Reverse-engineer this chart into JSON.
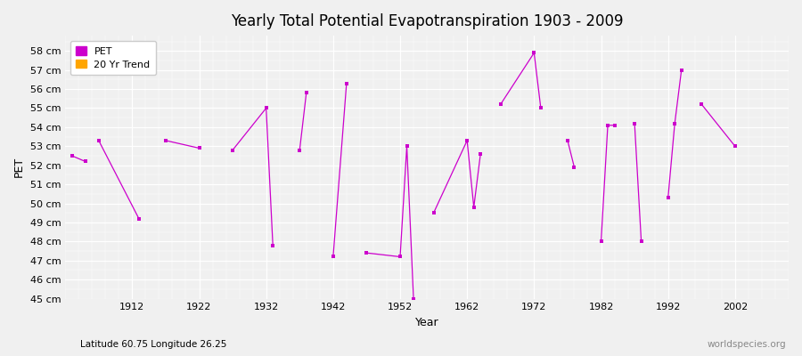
{
  "title": "Yearly Total Potential Evapotranspiration 1903 - 2009",
  "xlabel": "Year",
  "ylabel": "PET",
  "bottom_left_label": "Latitude 60.75 Longitude 26.25",
  "bottom_right_label": "worldspecies.org",
  "background_color": "#f0f0f0",
  "plot_bg_color": "#f0f0f0",
  "line_color": "#cc00cc",
  "trend_color": "#ffa500",
  "ylim_min": 45,
  "ylim_max": 58.8,
  "xlim_min": 1902,
  "xlim_max": 2010,
  "ytick_values": [
    45,
    46,
    47,
    48,
    49,
    50,
    51,
    52,
    53,
    54,
    55,
    56,
    57,
    58
  ],
  "ytick_labels": [
    "45 cm",
    "46 cm",
    "47 cm",
    "48 cm",
    "49 cm",
    "50 cm",
    "51 cm",
    "52 cm",
    "53 cm",
    "54 cm",
    "55 cm",
    "56 cm",
    "57 cm",
    "58 cm"
  ],
  "xtick_values": [
    1912,
    1922,
    1932,
    1942,
    1952,
    1962,
    1972,
    1982,
    1992,
    2002
  ],
  "segments": [
    {
      "years": [
        1903,
        1905
      ],
      "values": [
        52.5,
        52.2
      ]
    },
    {
      "years": [
        1907,
        1913
      ],
      "values": [
        53.3,
        49.2
      ]
    },
    {
      "years": [
        1917,
        1922
      ],
      "values": [
        53.3,
        52.9
      ]
    },
    {
      "years": [
        1927,
        1932,
        1933
      ],
      "values": [
        52.8,
        55.0,
        47.8
      ]
    },
    {
      "years": [
        1937,
        1938
      ],
      "values": [
        52.8,
        55.8
      ]
    },
    {
      "years": [
        1942,
        1944
      ],
      "values": [
        47.2,
        56.3
      ]
    },
    {
      "years": [
        1947,
        1952,
        1953,
        1954
      ],
      "values": [
        47.4,
        47.2,
        53.0,
        45.0
      ]
    },
    {
      "years": [
        1957,
        1962,
        1963,
        1964
      ],
      "values": [
        49.5,
        53.3,
        49.8,
        52.6
      ]
    },
    {
      "years": [
        1967,
        1972,
        1973
      ],
      "values": [
        55.2,
        57.9,
        55.0
      ]
    },
    {
      "years": [
        1977,
        1978
      ],
      "values": [
        53.3,
        51.9
      ]
    },
    {
      "years": [
        1982,
        1983,
        1984
      ],
      "values": [
        48.0,
        54.1,
        54.1
      ]
    },
    {
      "years": [
        1987,
        1988
      ],
      "values": [
        54.2,
        48.0
      ]
    },
    {
      "years": [
        1992,
        1993,
        1994
      ],
      "values": [
        50.3,
        54.2,
        57.0
      ]
    },
    {
      "years": [
        1997,
        2002
      ],
      "values": [
        55.2,
        53.0
      ]
    }
  ]
}
